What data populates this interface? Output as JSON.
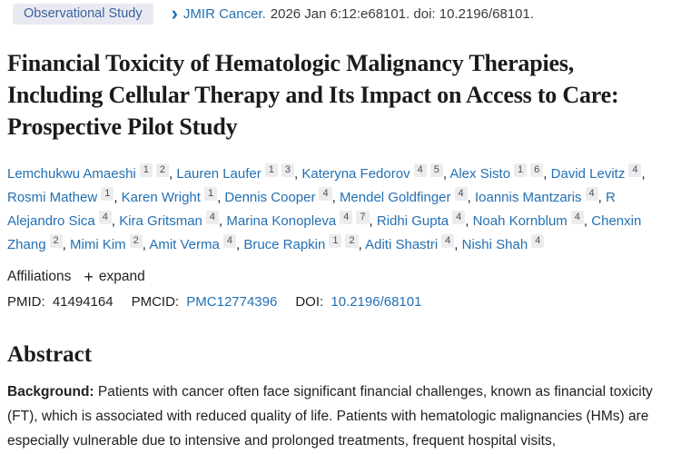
{
  "colors": {
    "link_blue": "#2470b3",
    "badge_background": "#e9eaf1",
    "badge_text": "#3c5f9f",
    "body_text": "#212121"
  },
  "header": {
    "badge_label": "Observational Study",
    "chevron_icon": "›",
    "journal_link": "JMIR Cancer.",
    "citation_rest": "2026 Jan 6:12:e68101. doi: 10.2196/68101."
  },
  "title": "Financial Toxicity of Hematologic Malignancy Therapies, Including Cellular Therapy and Its Impact on Access to Care: Prospective Pilot Study",
  "authors": [
    {
      "name": "Lemchukwu Amaeshi",
      "sups": [
        "1",
        "2"
      ]
    },
    {
      "name": "Lauren Laufer",
      "sups": [
        "1",
        "3"
      ]
    },
    {
      "name": "Kateryna Fedorov",
      "sups": [
        "4",
        "5"
      ]
    },
    {
      "name": "Alex Sisto",
      "sups": [
        "1",
        "6"
      ]
    },
    {
      "name": "David Levitz",
      "sups": [
        "4"
      ]
    },
    {
      "name": "Rosmi Mathew",
      "sups": [
        "1"
      ]
    },
    {
      "name": "Karen Wright",
      "sups": [
        "1"
      ]
    },
    {
      "name": "Dennis Cooper",
      "sups": [
        "4"
      ]
    },
    {
      "name": "Mendel Goldfinger",
      "sups": [
        "4"
      ]
    },
    {
      "name": "Ioannis Mantzaris",
      "sups": [
        "4"
      ]
    },
    {
      "name": "R Alejandro Sica",
      "sups": [
        "4"
      ]
    },
    {
      "name": "Kira Gritsman",
      "sups": [
        "4"
      ]
    },
    {
      "name": "Marina Konopleva",
      "sups": [
        "4",
        "7"
      ]
    },
    {
      "name": "Ridhi Gupta",
      "sups": [
        "4"
      ]
    },
    {
      "name": "Noah Kornblum",
      "sups": [
        "4"
      ]
    },
    {
      "name": "Chenxin Zhang",
      "sups": [
        "2"
      ]
    },
    {
      "name": "Mimi Kim",
      "sups": [
        "2"
      ]
    },
    {
      "name": "Amit Verma",
      "sups": [
        "4"
      ]
    },
    {
      "name": "Bruce Rapkin",
      "sups": [
        "1",
        "2"
      ]
    },
    {
      "name": "Aditi Shastri",
      "sups": [
        "4"
      ]
    },
    {
      "name": "Nishi Shah",
      "sups": [
        "4"
      ]
    }
  ],
  "affiliations": {
    "label": "Affiliations",
    "expand_icon": "+",
    "expand_label": "expand"
  },
  "identifiers": {
    "pmid_label": "PMID:",
    "pmid_value": "41494164",
    "pmcid_label": "PMCID:",
    "pmcid_value": "PMC12774396",
    "doi_label": "DOI:",
    "doi_value": "10.2196/68101"
  },
  "abstract": {
    "heading": "Abstract",
    "sections": [
      {
        "label": "Background:",
        "text": "Patients with cancer often face significant financial challenges, known as financial toxicity (FT), which is associated with reduced quality of life. Patients with hematologic malignancies (HMs) are especially vulnerable due to intensive and prolonged treatments, frequent hospital visits,"
      }
    ]
  }
}
